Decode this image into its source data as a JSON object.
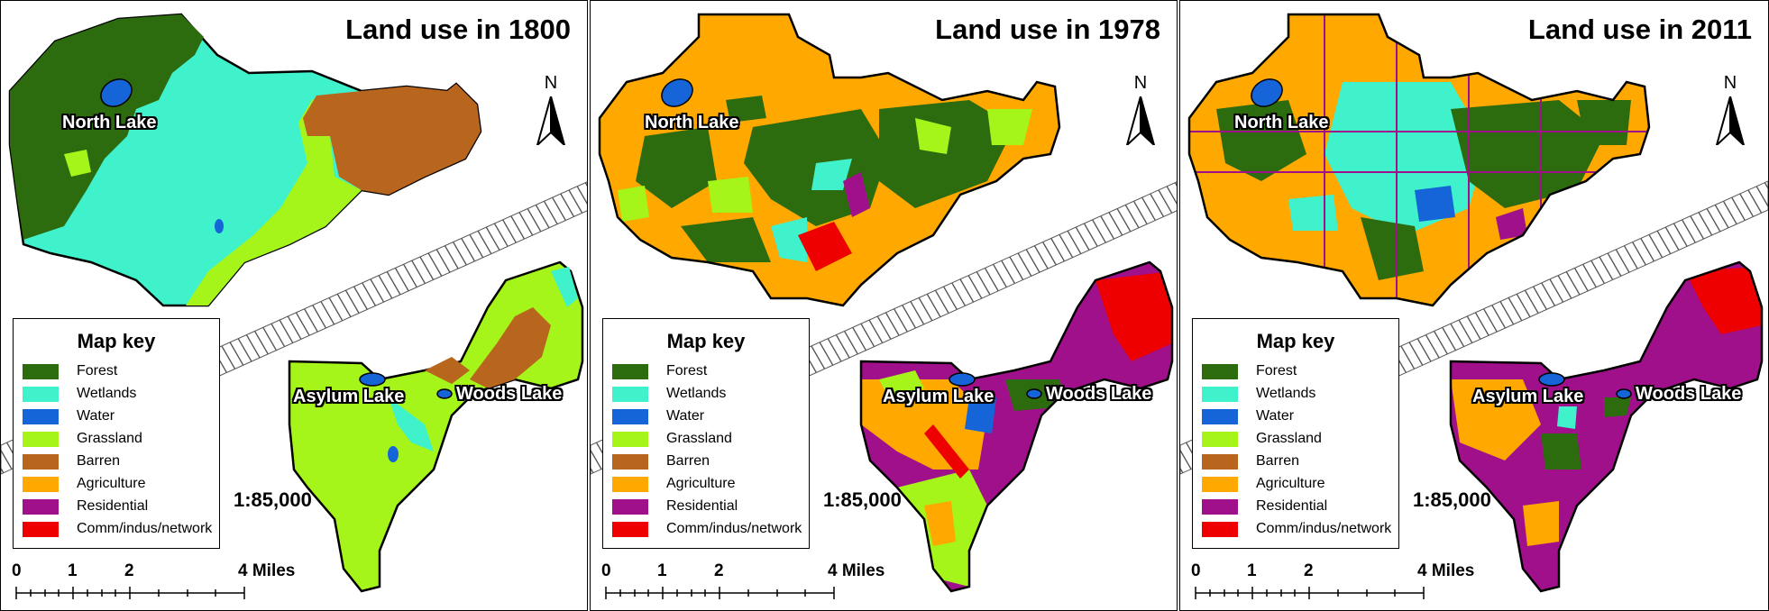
{
  "panels": [
    {
      "title": "Land use in 1800",
      "period": "1800"
    },
    {
      "title": "Land use in 1978",
      "period": "1978"
    },
    {
      "title": "Land use in 2011",
      "period": "2011"
    }
  ],
  "labels": {
    "north_lake": "North Lake",
    "asylum_lake": "Asylum Lake",
    "woods_lake": "Woods Lake",
    "north_arrow": "N",
    "scale_ratio": "1:85,000"
  },
  "legend": {
    "title": "Map key",
    "items": [
      {
        "label": "Forest",
        "color": "#2d6b0f"
      },
      {
        "label": "Wetlands",
        "color": "#3ff2cc"
      },
      {
        "label": "Water",
        "color": "#1565d8"
      },
      {
        "label": "Grassland",
        "color": "#a5f51a"
      },
      {
        "label": "Barren",
        "color": "#b8651e"
      },
      {
        "label": "Agriculture",
        "color": "#ffa800"
      },
      {
        "label": "Residential",
        "color": "#a0108a"
      },
      {
        "label": "Comm/indus/network",
        "color": "#ee0000"
      }
    ]
  },
  "scale_bar": {
    "ticks": [
      "0",
      "1",
      "2"
    ],
    "end_label": "4 Miles"
  },
  "colors": {
    "forest": "#2d6b0f",
    "wetlands": "#3ff2cc",
    "water": "#1565d8",
    "grassland": "#a5f51a",
    "barren": "#b8651e",
    "agriculture": "#ffa800",
    "residential": "#a0108a",
    "commercial": "#ee0000",
    "highway_hatch": "#444444"
  }
}
